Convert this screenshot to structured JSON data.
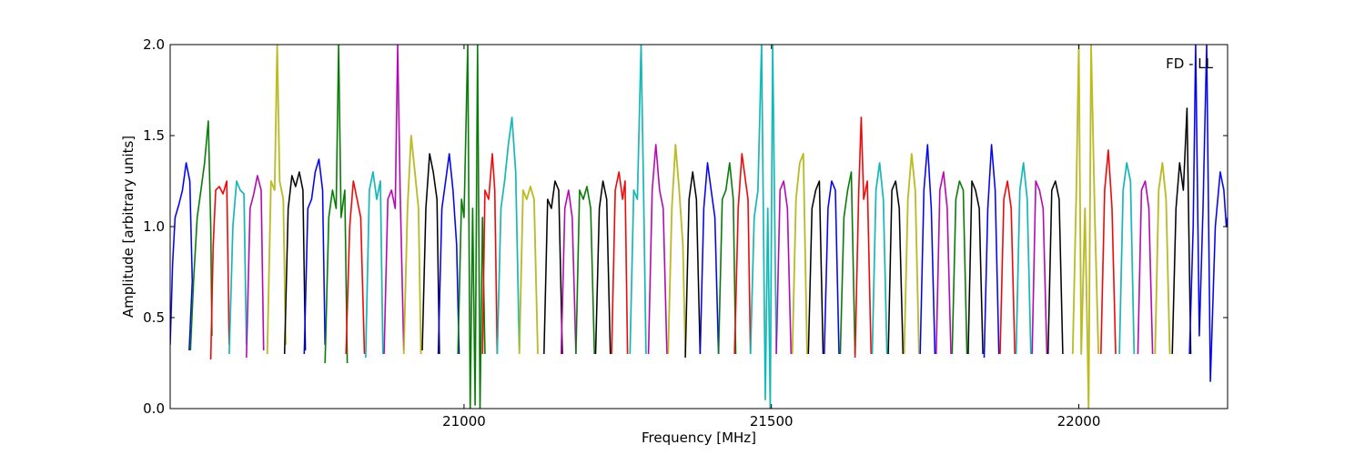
{
  "chart_data": {
    "type": "line",
    "annotation": "FD - LL",
    "xlabel": "Frequency [MHz]",
    "ylabel": "Amplitude [arbitrary units]",
    "xlim": [
      20522,
      22242
    ],
    "ylim": [
      0,
      2.0
    ],
    "x_ticks": [
      21000,
      21500,
      22000
    ],
    "y_ticks": [
      0.0,
      0.5,
      1.0,
      1.5,
      2.0
    ],
    "x_tick_labels": [
      "21000",
      "21500",
      "22000"
    ],
    "y_tick_labels": [
      "0.0",
      "0.5",
      "1.0",
      "1.5",
      "2.0"
    ],
    "grid": false,
    "legend": "none",
    "shadow_color": "#bfbfbf",
    "colors": [
      "#0000ff",
      "#008000",
      "#ff0000",
      "#00bfbf",
      "#bf00bf",
      "#bfbf00",
      "#000000"
    ],
    "series": [
      {
        "color": "#0000ff",
        "x": [
          20522,
          20526,
          20530,
          20536,
          20542,
          20548,
          20554,
          20558,
          20553
        ],
        "y": [
          0.35,
          0.8,
          1.05,
          1.12,
          1.2,
          1.35,
          1.25,
          0.7,
          0.32
        ]
      },
      {
        "color": "#008000",
        "x": [
          20555,
          20560,
          20566,
          20572,
          20578,
          20584,
          20588,
          20590
        ],
        "y": [
          0.32,
          0.7,
          1.05,
          1.2,
          1.35,
          1.58,
          1.0,
          0.4
        ]
      },
      {
        "color": "#ff0000",
        "x": [
          20588,
          20592,
          20596,
          20602,
          20608,
          20614,
          20618
        ],
        "y": [
          0.27,
          0.9,
          1.2,
          1.22,
          1.18,
          1.25,
          0.35
        ]
      },
      {
        "color": "#00bfbf",
        "x": [
          20618,
          20624,
          20630,
          20636,
          20642,
          20646
        ],
        "y": [
          0.3,
          1.0,
          1.25,
          1.2,
          1.18,
          0.35
        ]
      },
      {
        "color": "#bf00bf",
        "x": [
          20646,
          20652,
          20658,
          20664,
          20670,
          20674
        ],
        "y": [
          0.28,
          1.1,
          1.18,
          1.28,
          1.2,
          0.32
        ]
      },
      {
        "color": "#bfbf00",
        "x": [
          20680,
          20686,
          20692,
          20696,
          20700,
          20706,
          20710
        ],
        "y": [
          0.3,
          1.25,
          1.2,
          2.0,
          1.25,
          1.15,
          0.35
        ]
      },
      {
        "color": "#000000",
        "x": [
          20708,
          20714,
          20720,
          20726,
          20732,
          20738,
          20742
        ],
        "y": [
          0.3,
          1.1,
          1.28,
          1.22,
          1.3,
          1.2,
          0.32
        ]
      },
      {
        "color": "#0000ff",
        "x": [
          20740,
          20746,
          20752,
          20758,
          20764,
          20770,
          20774
        ],
        "y": [
          0.3,
          1.1,
          1.15,
          1.3,
          1.37,
          1.2,
          0.35
        ]
      },
      {
        "color": "#008000",
        "x": [
          20774,
          20780,
          20786,
          20792,
          20796,
          20800,
          20806,
          20810
        ],
        "y": [
          0.25,
          1.05,
          1.2,
          1.1,
          2.0,
          1.05,
          1.2,
          0.25
        ]
      },
      {
        "color": "#ff0000",
        "x": [
          20808,
          20814,
          20820,
          20826,
          20832,
          20838
        ],
        "y": [
          0.3,
          1.0,
          1.25,
          1.15,
          1.05,
          0.3
        ]
      },
      {
        "color": "#00bfbf",
        "x": [
          20840,
          20846,
          20852,
          20858,
          20864,
          20868
        ],
        "y": [
          0.28,
          1.2,
          1.3,
          1.15,
          1.25,
          0.3
        ]
      },
      {
        "color": "#bf00bf",
        "x": [
          20870,
          20876,
          20882,
          20888,
          20892,
          20896,
          20902
        ],
        "y": [
          0.3,
          1.15,
          1.2,
          1.1,
          2.0,
          1.2,
          0.32
        ]
      },
      {
        "color": "#bfbf00",
        "x": [
          20902,
          20908,
          20914,
          20920,
          20926,
          20930
        ],
        "y": [
          0.3,
          1.1,
          1.5,
          1.3,
          1.1,
          0.3
        ]
      },
      {
        "color": "#000000",
        "x": [
          20932,
          20938,
          20944,
          20950,
          20956,
          20960
        ],
        "y": [
          0.32,
          1.1,
          1.4,
          1.3,
          1.15,
          0.3
        ]
      },
      {
        "color": "#0000ff",
        "x": [
          20958,
          20964,
          20970,
          20976,
          20982,
          20988,
          20992
        ],
        "y": [
          0.3,
          1.1,
          1.25,
          1.4,
          1.2,
          0.9,
          0.3
        ]
      },
      {
        "color": "#008000",
        "x": [
          20990,
          20996,
          21000,
          21006,
          21010,
          21014,
          21018,
          21022,
          21026,
          21030,
          21034
        ],
        "y": [
          0.3,
          1.15,
          1.05,
          2.0,
          0.0,
          1.1,
          0.02,
          2.0,
          0.0,
          1.05,
          0.3
        ]
      },
      {
        "color": "#ff0000",
        "x": [
          21030,
          21034,
          21040,
          21046,
          21050,
          21054
        ],
        "y": [
          0.3,
          1.2,
          1.15,
          1.4,
          1.2,
          0.3
        ]
      },
      {
        "color": "#00bfbf",
        "x": [
          21054,
          21060,
          21066,
          21072,
          21078,
          21084,
          21090
        ],
        "y": [
          0.3,
          1.1,
          1.25,
          1.45,
          1.6,
          1.3,
          0.32
        ]
      },
      {
        "color": "#bfbf00",
        "x": [
          21090,
          21096,
          21102,
          21108,
          21114,
          21120
        ],
        "y": [
          0.3,
          1.2,
          1.15,
          1.22,
          1.15,
          0.3
        ]
      },
      {
        "color": "#000000",
        "x": [
          21130,
          21136,
          21142,
          21148,
          21154,
          21160
        ],
        "y": [
          0.3,
          1.15,
          1.1,
          1.25,
          1.2,
          0.3
        ]
      },
      {
        "color": "#bf00bf",
        "x": [
          21158,
          21164,
          21170,
          21176,
          21182
        ],
        "y": [
          0.3,
          1.1,
          1.2,
          1.05,
          0.3
        ]
      },
      {
        "color": "#008000",
        "x": [
          21182,
          21188,
          21194,
          21200,
          21206,
          21212
        ],
        "y": [
          0.3,
          1.2,
          1.15,
          1.22,
          1.1,
          0.3
        ]
      },
      {
        "color": "#000000",
        "x": [
          21214,
          21220,
          21226,
          21232,
          21238
        ],
        "y": [
          0.3,
          1.1,
          1.25,
          1.15,
          0.3
        ]
      },
      {
        "color": "#ff0000",
        "x": [
          21240,
          21246,
          21252,
          21258,
          21262,
          21266
        ],
        "y": [
          0.3,
          1.2,
          1.3,
          1.15,
          1.25,
          0.3
        ]
      },
      {
        "color": "#00bfbf",
        "x": [
          21270,
          21276,
          21282,
          21288,
          21292,
          21296
        ],
        "y": [
          0.3,
          1.2,
          1.15,
          2.0,
          1.2,
          0.3
        ]
      },
      {
        "color": "#bf00bf",
        "x": [
          21300,
          21306,
          21312,
          21318,
          21324,
          21330
        ],
        "y": [
          0.3,
          1.2,
          1.45,
          1.2,
          1.1,
          0.3
        ]
      },
      {
        "color": "#bfbf00",
        "x": [
          21332,
          21338,
          21344,
          21350,
          21356,
          21360
        ],
        "y": [
          0.3,
          1.1,
          1.45,
          1.2,
          0.9,
          0.3
        ]
      },
      {
        "color": "#000000",
        "x": [
          21360,
          21366,
          21372,
          21378,
          21384
        ],
        "y": [
          0.28,
          1.15,
          1.3,
          1.15,
          0.3
        ]
      },
      {
        "color": "#0000ff",
        "x": [
          21384,
          21390,
          21396,
          21402,
          21408,
          21414
        ],
        "y": [
          0.3,
          1.1,
          1.35,
          1.2,
          1.05,
          0.3
        ]
      },
      {
        "color": "#008000",
        "x": [
          21414,
          21420,
          21426,
          21432,
          21438,
          21442
        ],
        "y": [
          0.3,
          1.15,
          1.2,
          1.35,
          1.15,
          0.3
        ]
      },
      {
        "color": "#ff0000",
        "x": [
          21440,
          21446,
          21452,
          21458,
          21462,
          21466
        ],
        "y": [
          0.3,
          1.1,
          1.4,
          1.25,
          1.15,
          0.3
        ]
      },
      {
        "color": "#00bfbf",
        "x": [
          21466,
          21472,
          21478,
          21484,
          21490,
          21494,
          21498,
          21502,
          21508
        ],
        "y": [
          0.3,
          1.05,
          1.2,
          2.0,
          0.05,
          1.1,
          0.0,
          2.0,
          0.3
        ]
      },
      {
        "color": "#bf00bf",
        "x": [
          21508,
          21514,
          21520,
          21526,
          21532
        ],
        "y": [
          0.3,
          1.2,
          1.25,
          1.1,
          0.3
        ]
      },
      {
        "color": "#bfbf00",
        "x": [
          21534,
          21540,
          21546,
          21552,
          21558
        ],
        "y": [
          0.3,
          1.15,
          1.35,
          1.4,
          0.3
        ]
      },
      {
        "color": "#000000",
        "x": [
          21560,
          21566,
          21572,
          21578,
          21584
        ],
        "y": [
          0.3,
          1.1,
          1.2,
          1.25,
          0.3
        ]
      },
      {
        "color": "#0000ff",
        "x": [
          21586,
          21592,
          21598,
          21604,
          21610
        ],
        "y": [
          0.3,
          1.1,
          1.25,
          1.2,
          0.3
        ]
      },
      {
        "color": "#008000",
        "x": [
          21612,
          21618,
          21624,
          21630,
          21636
        ],
        "y": [
          0.3,
          1.05,
          1.2,
          1.3,
          0.3
        ]
      },
      {
        "color": "#ff0000",
        "x": [
          21636,
          21642,
          21646,
          21650,
          21656,
          21662
        ],
        "y": [
          0.28,
          1.2,
          1.6,
          1.15,
          1.25,
          0.3
        ]
      },
      {
        "color": "#00bfbf",
        "x": [
          21664,
          21670,
          21676,
          21682,
          21688
        ],
        "y": [
          0.3,
          1.2,
          1.35,
          1.15,
          0.3
        ]
      },
      {
        "color": "#000000",
        "x": [
          21690,
          21696,
          21702,
          21708,
          21714
        ],
        "y": [
          0.3,
          1.2,
          1.25,
          1.1,
          0.3
        ]
      },
      {
        "color": "#bfbf00",
        "x": [
          21716,
          21722,
          21728,
          21734,
          21740
        ],
        "y": [
          0.3,
          1.15,
          1.4,
          1.2,
          0.3
        ]
      },
      {
        "color": "#0000ff",
        "x": [
          21742,
          21748,
          21754,
          21760,
          21766
        ],
        "y": [
          0.3,
          1.2,
          1.45,
          1.1,
          0.3
        ]
      },
      {
        "color": "#bf00bf",
        "x": [
          21768,
          21774,
          21780,
          21786,
          21792
        ],
        "y": [
          0.3,
          1.2,
          1.3,
          1.1,
          0.3
        ]
      },
      {
        "color": "#008000",
        "x": [
          21794,
          21800,
          21806,
          21812,
          21818
        ],
        "y": [
          0.3,
          1.15,
          1.25,
          1.2,
          0.3
        ]
      },
      {
        "color": "#000000",
        "x": [
          21820,
          21826,
          21832,
          21838,
          21844
        ],
        "y": [
          0.3,
          1.25,
          1.2,
          1.1,
          0.3
        ]
      },
      {
        "color": "#0000ff",
        "x": [
          21846,
          21852,
          21858,
          21864,
          21870
        ],
        "y": [
          0.28,
          1.1,
          1.45,
          1.2,
          0.3
        ]
      },
      {
        "color": "#ff0000",
        "x": [
          21872,
          21878,
          21884,
          21890,
          21896
        ],
        "y": [
          0.3,
          1.15,
          1.25,
          1.1,
          0.3
        ]
      },
      {
        "color": "#00bfbf",
        "x": [
          21898,
          21904,
          21910,
          21916,
          21922
        ],
        "y": [
          0.3,
          1.2,
          1.35,
          1.15,
          0.3
        ]
      },
      {
        "color": "#bf00bf",
        "x": [
          21924,
          21930,
          21936,
          21942,
          21948
        ],
        "y": [
          0.3,
          1.25,
          1.2,
          1.1,
          0.3
        ]
      },
      {
        "color": "#000000",
        "x": [
          21950,
          21956,
          21962,
          21968,
          21974
        ],
        "y": [
          0.3,
          1.2,
          1.25,
          1.15,
          0.3
        ]
      },
      {
        "color": "#bfbf00",
        "x": [
          21990,
          21996,
          22000,
          22004,
          22010,
          22016,
          22020,
          22026,
          22032
        ],
        "y": [
          0.3,
          1.2,
          2.0,
          0.3,
          1.1,
          0.0,
          2.0,
          1.05,
          0.3
        ]
      },
      {
        "color": "#ff0000",
        "x": [
          22036,
          22042,
          22048,
          22054,
          22060
        ],
        "y": [
          0.3,
          1.2,
          1.42,
          1.1,
          0.3
        ]
      },
      {
        "color": "#00bfbf",
        "x": [
          22066,
          22072,
          22078,
          22084,
          22090
        ],
        "y": [
          0.3,
          1.2,
          1.35,
          1.25,
          0.3
        ]
      },
      {
        "color": "#bf00bf",
        "x": [
          22096,
          22102,
          22108,
          22114,
          22120
        ],
        "y": [
          0.3,
          1.2,
          1.25,
          1.1,
          0.3
        ]
      },
      {
        "color": "#bfbf00",
        "x": [
          22124,
          22130,
          22136,
          22142,
          22148
        ],
        "y": [
          0.3,
          1.2,
          1.35,
          1.15,
          0.3
        ]
      },
      {
        "color": "#000000",
        "x": [
          22152,
          22158,
          22164,
          22170,
          22176,
          22182
        ],
        "y": [
          0.3,
          1.1,
          1.35,
          1.2,
          1.65,
          0.3
        ]
      },
      {
        "color": "#0000ff",
        "x": [
          22180,
          22186,
          22190,
          22196,
          22202,
          22208,
          22214,
          22222,
          22230,
          22236,
          22240,
          22242
        ],
        "y": [
          0.3,
          1.0,
          2.0,
          0.4,
          1.1,
          2.0,
          0.15,
          1.0,
          1.3,
          1.2,
          1.0,
          1.05
        ]
      }
    ]
  }
}
